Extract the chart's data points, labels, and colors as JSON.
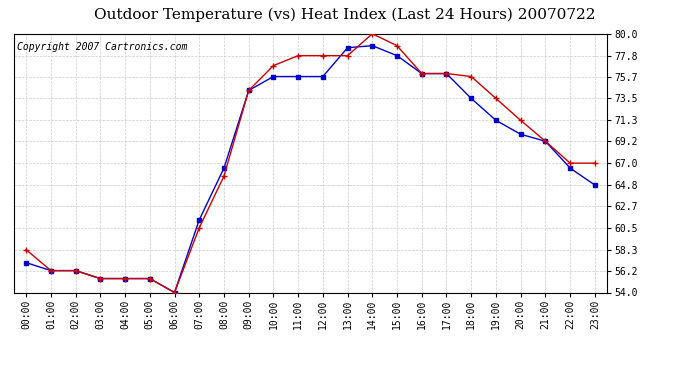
{
  "title": "Outdoor Temperature (vs) Heat Index (Last 24 Hours) 20070722",
  "copyright": "Copyright 2007 Cartronics.com",
  "x_labels": [
    "00:00",
    "01:00",
    "02:00",
    "03:00",
    "04:00",
    "05:00",
    "06:00",
    "07:00",
    "08:00",
    "09:00",
    "10:00",
    "11:00",
    "12:00",
    "13:00",
    "14:00",
    "15:00",
    "16:00",
    "17:00",
    "18:00",
    "19:00",
    "20:00",
    "21:00",
    "22:00",
    "23:00"
  ],
  "temp_data": [
    58.3,
    56.2,
    56.2,
    55.4,
    55.4,
    55.4,
    54.0,
    60.5,
    65.7,
    74.3,
    76.8,
    77.8,
    77.8,
    77.8,
    80.0,
    78.8,
    76.0,
    76.0,
    75.7,
    73.5,
    71.3,
    69.2,
    67.0,
    67.0
  ],
  "heat_data": [
    57.0,
    56.2,
    56.2,
    55.4,
    55.4,
    55.4,
    54.0,
    61.3,
    66.5,
    74.3,
    75.7,
    75.7,
    75.7,
    78.6,
    78.8,
    77.8,
    76.0,
    76.0,
    73.5,
    71.3,
    69.9,
    69.2,
    66.5,
    64.8
  ],
  "temp_color": "#cc0000",
  "heat_color": "#0000cc",
  "bg_color": "#ffffff",
  "plot_bg_color": "#ffffff",
  "grid_color": "#cccccc",
  "ylim": [
    54.0,
    80.0
  ],
  "yticks": [
    54.0,
    56.2,
    58.3,
    60.5,
    62.7,
    64.8,
    67.0,
    69.2,
    71.3,
    73.5,
    75.7,
    77.8,
    80.0
  ],
  "title_fontsize": 11,
  "copyright_fontsize": 7,
  "tick_fontsize": 7
}
